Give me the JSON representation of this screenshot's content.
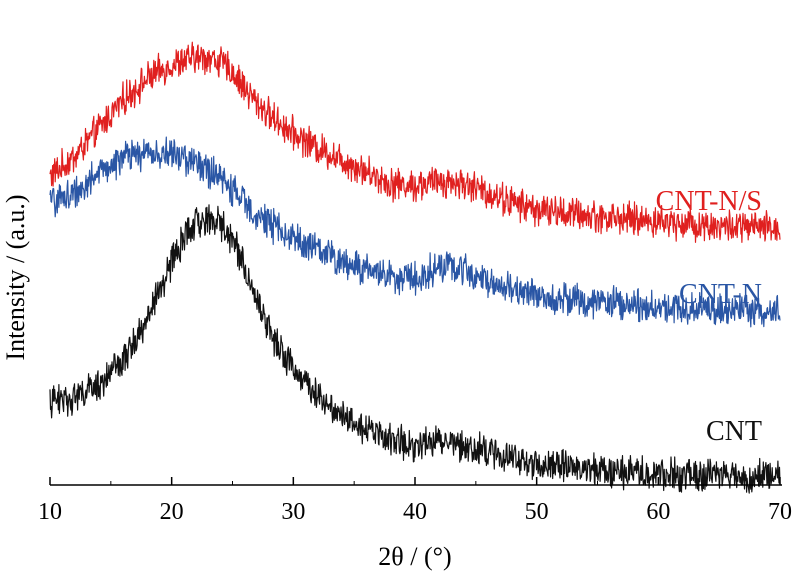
{
  "chart_data": {
    "type": "line",
    "xlabel": "2θ / (°)",
    "ylabel": "Intensity / (a.u.)",
    "xlim": [
      10,
      70
    ],
    "ylim": [
      0,
      10
    ],
    "x_ticks": [
      10,
      20,
      30,
      40,
      50,
      60,
      70
    ],
    "x_tick_labels": [
      "10",
      "20",
      "30",
      "40",
      "50",
      "60",
      "70"
    ],
    "y_ticks_shown": false,
    "grid": false,
    "legend": "inline labels at right",
    "series": [
      {
        "name": "CNT-N/S",
        "color": "#e0201f",
        "x": [
          10,
          12,
          14,
          16,
          18,
          20,
          22,
          23,
          24,
          25,
          26,
          27,
          28,
          29,
          30,
          32,
          34,
          36,
          38,
          40,
          42,
          44,
          46,
          48,
          50,
          55,
          60,
          65,
          70
        ],
        "y": [
          6.5,
          6.9,
          7.5,
          8.1,
          8.55,
          8.85,
          9.0,
          9.0,
          8.9,
          8.7,
          8.35,
          8.05,
          7.8,
          7.6,
          7.4,
          7.1,
          6.85,
          6.6,
          6.35,
          6.3,
          6.4,
          6.35,
          6.15,
          5.95,
          5.8,
          5.65,
          5.55,
          5.45,
          5.4
        ]
      },
      {
        "name": "CNT-N",
        "color": "#2a56a5",
        "x": [
          10,
          12,
          14,
          16,
          18,
          20,
          22,
          24,
          26,
          28,
          30,
          32,
          34,
          36,
          38,
          40,
          42,
          44,
          46,
          48,
          50,
          55,
          60,
          65,
          70
        ],
        "y": [
          5.95,
          6.15,
          6.55,
          6.9,
          7.0,
          6.95,
          6.8,
          6.45,
          5.95,
          5.5,
          5.2,
          4.95,
          4.7,
          4.55,
          4.4,
          4.35,
          4.6,
          4.55,
          4.3,
          4.1,
          4.0,
          3.85,
          3.75,
          3.7,
          3.65
        ]
      },
      {
        "name": "CNT",
        "color": "#111111",
        "x": [
          10,
          12,
          14,
          16,
          18,
          20,
          21,
          22,
          23,
          24,
          25,
          26,
          27,
          28,
          29,
          30,
          32,
          34,
          36,
          38,
          40,
          42,
          44,
          46,
          48,
          50,
          55,
          60,
          65,
          70
        ],
        "y": [
          1.75,
          1.85,
          2.1,
          2.6,
          3.5,
          4.7,
          5.2,
          5.5,
          5.6,
          5.5,
          5.2,
          4.6,
          3.9,
          3.3,
          2.8,
          2.45,
          1.9,
          1.5,
          1.2,
          0.95,
          0.85,
          0.95,
          0.85,
          0.7,
          0.55,
          0.45,
          0.3,
          0.25,
          0.2,
          0.15
        ]
      }
    ],
    "annotations": [
      "CNT-N/S",
      "CNT-N",
      "CNT"
    ]
  }
}
